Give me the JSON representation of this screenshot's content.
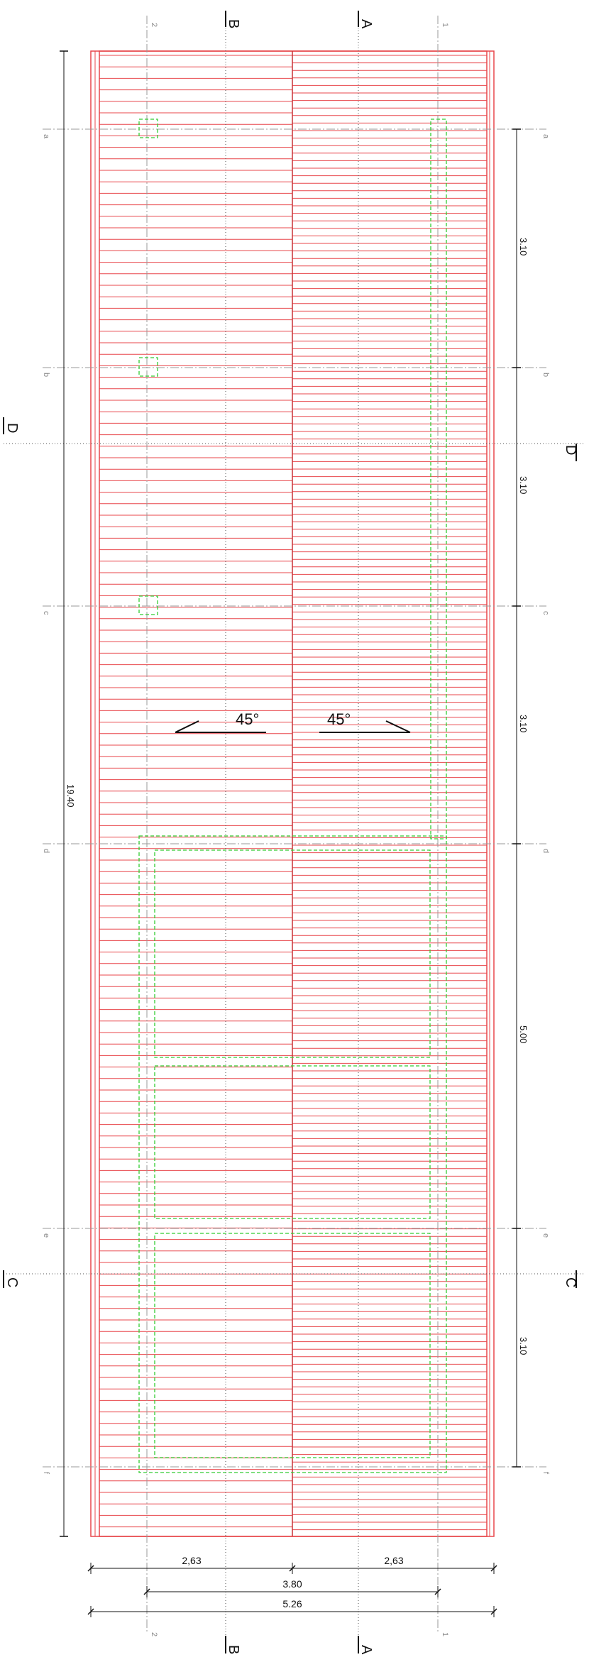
{
  "colors": {
    "outline": "#e8474b",
    "ridge": "#c83236",
    "slab": "#33cc33",
    "axis": "#9a9a9a",
    "section": "#555555",
    "dimension": "#111111",
    "text": "#111111",
    "axis_text": "#888888"
  },
  "axes_vertical": {
    "left": "2",
    "right": "1"
  },
  "axes_horizontal": [
    "a",
    "b",
    "c",
    "d",
    "e",
    "f"
  ],
  "sections": {
    "A": "A",
    "B": "B",
    "C": "C",
    "D": "D"
  },
  "dimensions": {
    "total_length": "19.40",
    "spans": [
      "3.10",
      "3.10",
      "3.10",
      "5.00",
      "3.10"
    ],
    "half_left": "2,63",
    "half_right": "2,63",
    "axis_width": "3.80",
    "total_width": "5.26"
  },
  "slopes": {
    "left": "45°",
    "right": "45°"
  }
}
